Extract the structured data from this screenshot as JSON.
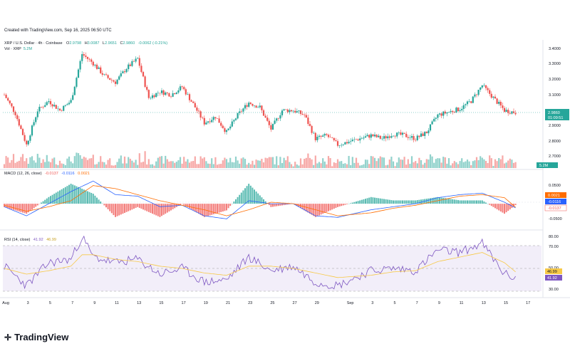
{
  "header": "Created with TradingView.com, Sep 16, 2025 06:50 UTC",
  "brand": "TradingView",
  "symbol_line": {
    "title": "XRP / U.S. Dollar · 4h · Coinbase",
    "o_label": "O",
    "o": "2.9798",
    "h_label": "H",
    "h": "3.0087",
    "l_label": "L",
    "l": "2.9651",
    "c_label": "C",
    "c": "2.9860",
    "chg": "-0.0062 (-0.21%)"
  },
  "vol_line": {
    "label": "Vol · XRP",
    "value": "5.2M"
  },
  "macd_line": {
    "label": "MACD (12, 26, close)",
    "v1": "-0.0137",
    "v2": "-0.0116",
    "v3": "0.0021"
  },
  "rsi_line": {
    "label": "RSI (14, close)",
    "v1": "41.92",
    "v2": "46.99"
  },
  "colors": {
    "up": "#26a69a",
    "down": "#ef5350",
    "macd": "#2962ff",
    "signal": "#ff6d00",
    "rsi": "#7e57c2",
    "rsi_ma": "#f7c948",
    "rsi_band": "#ede7f6"
  },
  "price_axis": [
    "3.4000",
    "3.3000",
    "3.2000",
    "3.1000",
    "2.9000",
    "2.8000",
    "2.7000"
  ],
  "price_tag": {
    "price": "2.9860",
    "time": "01:09:51"
  },
  "vol_tag": "5.2M",
  "macd_axis": [
    "0.0500",
    "-0.0500"
  ],
  "macd_tags": [
    "0.0021",
    "-0.0116",
    "-0.0137"
  ],
  "rsi_axis": [
    "80.00",
    "70.00",
    "50.00",
    "30.00"
  ],
  "rsi_tags": [
    "46.99",
    "41.92"
  ],
  "time_axis": [
    "Aug",
    "3",
    "5",
    "7",
    "9",
    "11",
    "13",
    "15",
    "17",
    "19",
    "21",
    "23",
    "25",
    "27",
    "29",
    "Sep",
    "3",
    "5",
    "7",
    "9",
    "11",
    "13",
    "15",
    "17"
  ],
  "chart_data": {
    "type": "candlestick",
    "title": "XRP / U.S. Dollar · 4h · Coinbase",
    "y_range": [
      2.65,
      3.45
    ],
    "anchors": [
      {
        "date": "Aug 1",
        "close": 3.1
      },
      {
        "date": "Aug 2",
        "close": 2.98
      },
      {
        "date": "Aug 3",
        "close": 2.78
      },
      {
        "date": "Aug 4",
        "close": 3.0
      },
      {
        "date": "Aug 5",
        "close": 3.06
      },
      {
        "date": "Aug 6",
        "close": 3.0
      },
      {
        "date": "Aug 7",
        "close": 3.06
      },
      {
        "date": "Aug 8",
        "close": 3.36
      },
      {
        "date": "Aug 9",
        "close": 3.3
      },
      {
        "date": "Aug 10",
        "close": 3.22
      },
      {
        "date": "Aug 11",
        "close": 3.18
      },
      {
        "date": "Aug 12",
        "close": 3.27
      },
      {
        "date": "Aug 13",
        "close": 3.33
      },
      {
        "date": "Aug 14",
        "close": 3.08
      },
      {
        "date": "Aug 15",
        "close": 3.12
      },
      {
        "date": "Aug 16",
        "close": 3.1
      },
      {
        "date": "Aug 17",
        "close": 3.15
      },
      {
        "date": "Aug 18",
        "close": 3.04
      },
      {
        "date": "Aug 19",
        "close": 2.92
      },
      {
        "date": "Aug 20",
        "close": 2.96
      },
      {
        "date": "Aug 21",
        "close": 2.86
      },
      {
        "date": "Aug 22",
        "close": 2.97
      },
      {
        "date": "Aug 23",
        "close": 3.05
      },
      {
        "date": "Aug 24",
        "close": 3.02
      },
      {
        "date": "Aug 25",
        "close": 2.88
      },
      {
        "date": "Aug 26",
        "close": 3.0
      },
      {
        "date": "Aug 27",
        "close": 3.0
      },
      {
        "date": "Aug 28",
        "close": 2.97
      },
      {
        "date": "Aug 29",
        "close": 2.82
      },
      {
        "date": "Aug 30",
        "close": 2.84
      },
      {
        "date": "Aug 31",
        "close": 2.78
      },
      {
        "date": "Sep 1",
        "close": 2.8
      },
      {
        "date": "Sep 2",
        "close": 2.82
      },
      {
        "date": "Sep 3",
        "close": 2.84
      },
      {
        "date": "Sep 4",
        "close": 2.82
      },
      {
        "date": "Sep 5",
        "close": 2.85
      },
      {
        "date": "Sep 6",
        "close": 2.84
      },
      {
        "date": "Sep 7",
        "close": 2.82
      },
      {
        "date": "Sep 8",
        "close": 2.86
      },
      {
        "date": "Sep 9",
        "close": 2.97
      },
      {
        "date": "Sep 10",
        "close": 2.99
      },
      {
        "date": "Sep 11",
        "close": 3.01
      },
      {
        "date": "Sep 12",
        "close": 3.06
      },
      {
        "date": "Sep 13",
        "close": 3.16
      },
      {
        "date": "Sep 14",
        "close": 3.08
      },
      {
        "date": "Sep 15",
        "close": 3.0
      },
      {
        "date": "Sep 16",
        "close": 2.986
      }
    ],
    "macd_range": [
      -0.075,
      0.085
    ],
    "macd_anchors": [
      {
        "date": "Aug 1",
        "macd": -0.01,
        "signal": -0.005
      },
      {
        "date": "Aug 3",
        "macd": -0.04,
        "signal": -0.025
      },
      {
        "date": "Aug 5",
        "macd": 0.0,
        "signal": -0.01
      },
      {
        "date": "Aug 7",
        "macd": 0.04,
        "signal": 0.01
      },
      {
        "date": "Aug 9",
        "macd": 0.075,
        "signal": 0.06
      },
      {
        "date": "Aug 11",
        "macd": 0.03,
        "signal": 0.05
      },
      {
        "date": "Aug 13",
        "macd": 0.025,
        "signal": 0.03
      },
      {
        "date": "Aug 15",
        "macd": -0.01,
        "signal": 0.01
      },
      {
        "date": "Aug 17",
        "macd": -0.005,
        "signal": -0.005
      },
      {
        "date": "Aug 19",
        "macd": -0.04,
        "signal": -0.02
      },
      {
        "date": "Aug 21",
        "macd": -0.05,
        "signal": -0.04
      },
      {
        "date": "Aug 23",
        "macd": 0.01,
        "signal": -0.02
      },
      {
        "date": "Aug 25",
        "macd": 0.0,
        "signal": 0.005
      },
      {
        "date": "Aug 27",
        "macd": 0.0,
        "signal": 0.0
      },
      {
        "date": "Aug 29",
        "macd": -0.04,
        "signal": -0.02
      },
      {
        "date": "Aug 31",
        "macd": -0.045,
        "signal": -0.04
      },
      {
        "date": "Sep 3",
        "macd": -0.02,
        "signal": -0.03
      },
      {
        "date": "Sep 5",
        "macd": -0.01,
        "signal": -0.015
      },
      {
        "date": "Sep 7",
        "macd": 0.0,
        "signal": -0.005
      },
      {
        "date": "Sep 9",
        "macd": 0.02,
        "signal": 0.01
      },
      {
        "date": "Sep 11",
        "macd": 0.03,
        "signal": 0.025
      },
      {
        "date": "Sep 13",
        "macd": 0.035,
        "signal": 0.03
      },
      {
        "date": "Sep 15",
        "macd": 0.005,
        "signal": 0.02
      },
      {
        "date": "Sep 16",
        "macd": -0.0137,
        "signal": -0.0116
      }
    ],
    "rsi_range": [
      25,
      85
    ],
    "rsi_anchors": [
      {
        "date": "Aug 1",
        "rsi": 52,
        "ma": 50
      },
      {
        "date": "Aug 3",
        "rsi": 35,
        "ma": 45
      },
      {
        "date": "Aug 5",
        "rsi": 55,
        "ma": 48
      },
      {
        "date": "Aug 7",
        "rsi": 58,
        "ma": 52
      },
      {
        "date": "Aug 8",
        "rsi": 78,
        "ma": 62
      },
      {
        "date": "Aug 9",
        "rsi": 60,
        "ma": 62
      },
      {
        "date": "Aug 11",
        "rsi": 55,
        "ma": 58
      },
      {
        "date": "Aug 13",
        "rsi": 58,
        "ma": 56
      },
      {
        "date": "Aug 15",
        "rsi": 45,
        "ma": 52
      },
      {
        "date": "Aug 17",
        "rsi": 50,
        "ma": 50
      },
      {
        "date": "Aug 19",
        "rsi": 38,
        "ma": 46
      },
      {
        "date": "Aug 21",
        "rsi": 40,
        "ma": 44
      },
      {
        "date": "Aug 23",
        "rsi": 60,
        "ma": 52
      },
      {
        "date": "Aug 25",
        "rsi": 48,
        "ma": 52
      },
      {
        "date": "Aug 27",
        "rsi": 52,
        "ma": 50
      },
      {
        "date": "Aug 29",
        "rsi": 38,
        "ma": 46
      },
      {
        "date": "Aug 31",
        "rsi": 35,
        "ma": 42
      },
      {
        "date": "Sep 3",
        "rsi": 48,
        "ma": 44
      },
      {
        "date": "Sep 5",
        "rsi": 50,
        "ma": 47
      },
      {
        "date": "Sep 7",
        "rsi": 48,
        "ma": 48
      },
      {
        "date": "Sep 9",
        "rsi": 66,
        "ma": 56
      },
      {
        "date": "Sep 11",
        "rsi": 64,
        "ma": 60
      },
      {
        "date": "Sep 13",
        "rsi": 72,
        "ma": 64
      },
      {
        "date": "Sep 15",
        "rsi": 45,
        "ma": 55
      },
      {
        "date": "Sep 16",
        "rsi": 41.92,
        "ma": 46.99
      }
    ]
  }
}
